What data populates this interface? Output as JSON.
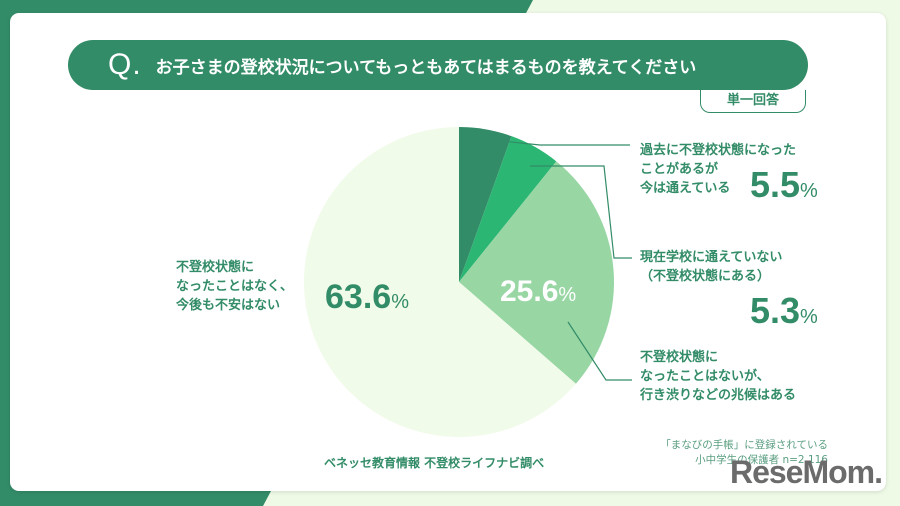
{
  "question": {
    "mark": "Q.",
    "text": "お子さまの登校状況についてもっともあてはまるものを教えてください",
    "answer_type": "単一回答"
  },
  "slices": [
    {
      "label_lines": [
        "過去に不登校状態になった",
        "ことがあるが",
        "今は通えている"
      ],
      "value": "5.5",
      "unit": "%",
      "color": "#338c68"
    },
    {
      "label_lines": [
        "現在学校に通えていない",
        "（不登校状態にある）"
      ],
      "value": "5.3",
      "unit": "%",
      "color": "#2bb673"
    },
    {
      "label_lines": [
        "不登校状態に",
        "なったことはないが、",
        "行き渋りなどの兆候はある"
      ],
      "value": "25.6",
      "unit": "%",
      "color": "#98d6a4"
    },
    {
      "label_lines": [
        "不登校状態に",
        "なったことはなく、",
        "今後も不安はない"
      ],
      "value": "63.6",
      "unit": "%",
      "color": "#f1fbe9"
    }
  ],
  "source": "ベネッセ教育情報 不登校ライフナビ調べ",
  "note": {
    "line1": "「まなびの手帳」に登録されている",
    "line2": "小中学生の保護者 n=2,116"
  },
  "watermark": "ReseMom.",
  "colors": {
    "brand_green": "#338c68",
    "page_bg": "#eef9e6"
  },
  "chart_data": {
    "type": "pie",
    "title": "お子さまの登校状況についてもっともあてはまるものを教えてください",
    "subtitle": "単一回答",
    "categories": [
      "過去に不登校状態になったことがあるが今は通えている",
      "現在学校に通えていない（不登校状態にある）",
      "不登校状態になったことはないが、行き渋りなどの兆候はある",
      "不登校状態になったことはなく、今後も不安はない"
    ],
    "values": [
      5.5,
      5.3,
      25.6,
      63.6
    ],
    "unit": "%",
    "start_angle": "12 o'clock, clockwise",
    "source": "ベネッセ教育情報 不登校ライフナビ調べ",
    "sample": "「まなびの手帳」に登録されている小中学生の保護者 n=2,116"
  }
}
